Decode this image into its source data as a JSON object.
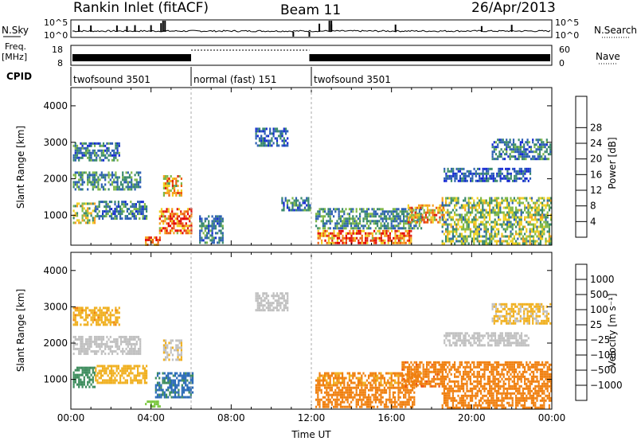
{
  "header": {
    "station": "Rankin Inlet (fitACF)",
    "beam": "Beam 11",
    "date": "26/Apr/2013"
  },
  "left_labels": {
    "nsky": "N.Sky",
    "freq": "Freq.",
    "mhz": "[MHz]",
    "cpid": "CPID"
  },
  "right_labels": {
    "nsearch": "N.Search",
    "nave": "Nave"
  },
  "cpid_segments": [
    {
      "label": "twofsound 3501",
      "start_hour": 0,
      "end_hour": 6
    },
    {
      "label": "normal (fast) 151",
      "start_hour": 6,
      "end_hour": 12
    },
    {
      "label": "twofsound 3501",
      "start_hour": 12,
      "end_hour": 24
    }
  ],
  "chart_data": [
    {
      "type": "heatmap",
      "quantity": "Power",
      "ylabel": "Slant Range [km]",
      "colorbar_label": "Power [dB]",
      "ylim": [
        180,
        4500
      ],
      "xlim": [
        0,
        24
      ],
      "yticks": [
        1000,
        2000,
        3000,
        4000
      ],
      "colorbar_ticks": [
        "4",
        "8",
        "12",
        "16",
        "20",
        "24",
        "28"
      ],
      "colorbar_colors": [
        "#1428d2",
        "#2c5fb4",
        "#3a8a6c",
        "#7fb848",
        "#f0d020",
        "#f5a020",
        "#ee6010",
        "#e02010",
        "#e40000"
      ],
      "regions": [
        {
          "t0": 0.1,
          "t1": 1.2,
          "r0": 750,
          "r1": 1350,
          "v": 16
        },
        {
          "t0": 1.2,
          "t1": 3.8,
          "r0": 900,
          "r1": 1400,
          "v": 8
        },
        {
          "t0": 0.1,
          "t1": 3.5,
          "r0": 1700,
          "r1": 2200,
          "v": 10
        },
        {
          "t0": 0.1,
          "t1": 2.5,
          "r0": 2500,
          "r1": 3000,
          "v": 8
        },
        {
          "t0": 4.4,
          "t1": 6.1,
          "r0": 500,
          "r1": 1200,
          "v": 26
        },
        {
          "t0": 4.6,
          "t1": 5.6,
          "r0": 1500,
          "r1": 2100,
          "v": 20
        },
        {
          "t0": 3.7,
          "t1": 4.5,
          "r0": 190,
          "r1": 420,
          "v": 24
        },
        {
          "t0": 6.4,
          "t1": 7.6,
          "r0": 200,
          "r1": 1000,
          "v": 8
        },
        {
          "t0": 9.2,
          "t1": 10.9,
          "r0": 2900,
          "r1": 3400,
          "v": 6
        },
        {
          "t0": 10.5,
          "t1": 12.0,
          "r0": 1100,
          "r1": 1500,
          "v": 8
        },
        {
          "t0": 12.3,
          "t1": 17.0,
          "r0": 200,
          "r1": 600,
          "v": 26
        },
        {
          "t0": 12.2,
          "t1": 17.5,
          "r0": 600,
          "r1": 1200,
          "v": 10
        },
        {
          "t0": 16.8,
          "t1": 18.6,
          "r0": 800,
          "r1": 1300,
          "v": 22
        },
        {
          "t0": 18.5,
          "t1": 24.0,
          "r0": 200,
          "r1": 1500,
          "v": 14
        },
        {
          "t0": 18.6,
          "t1": 23.0,
          "r0": 1900,
          "r1": 2300,
          "v": 6
        },
        {
          "t0": 21.0,
          "t1": 24.0,
          "r0": 2500,
          "r1": 3100,
          "v": 8
        }
      ]
    },
    {
      "type": "heatmap",
      "quantity": "Velocity",
      "ylabel": "Slant Range [km]",
      "xlabel": "Time UT",
      "colorbar_label": "Velocity [m s⁻¹]",
      "ylim": [
        180,
        4500
      ],
      "xlim": [
        0,
        24
      ],
      "yticks": [
        1000,
        2000,
        3000,
        4000
      ],
      "xticks": [
        "00:00",
        "04:00",
        "08:00",
        "12:00",
        "16:00",
        "20:00",
        "00:00"
      ],
      "colorbar_ticks": [
        "1000",
        "500",
        "100",
        "25",
        "−25",
        "−100",
        "−500",
        "−1000"
      ],
      "colorbar_colors": [
        "#1440c8",
        "#2c6cb8",
        "#3c8c5c",
        "#7cc840",
        "#c0c0c0",
        "#f0b020",
        "#f08010",
        "#ee5010",
        "#e40000"
      ],
      "regions": [
        {
          "t0": 0.1,
          "t1": 1.2,
          "r0": 750,
          "r1": 1350,
          "v": 300
        },
        {
          "t0": 1.2,
          "t1": 3.8,
          "r0": 900,
          "r1": 1400,
          "v": -60
        },
        {
          "t0": 0.1,
          "t1": 3.5,
          "r0": 1700,
          "r1": 2200,
          "v": 0
        },
        {
          "t0": 0.1,
          "t1": 2.5,
          "r0": 2500,
          "r1": 3000,
          "v": -80
        },
        {
          "t0": 4.2,
          "t1": 6.1,
          "r0": 500,
          "r1": 1200,
          "v": 600
        },
        {
          "t0": 4.6,
          "t1": 5.6,
          "r0": 1500,
          "r1": 2100,
          "v": -20
        },
        {
          "t0": 3.7,
          "t1": 4.5,
          "r0": 190,
          "r1": 420,
          "v": 60
        },
        {
          "t0": 9.2,
          "t1": 10.9,
          "r0": 2900,
          "r1": 3400,
          "v": 0
        },
        {
          "t0": 12.2,
          "t1": 17.2,
          "r0": 200,
          "r1": 800,
          "v": -300
        },
        {
          "t0": 12.2,
          "t1": 17.5,
          "r0": 800,
          "r1": 1200,
          "v": -120
        },
        {
          "t0": 16.5,
          "t1": 18.6,
          "r0": 800,
          "r1": 1500,
          "v": -400
        },
        {
          "t0": 18.5,
          "t1": 24.0,
          "r0": 200,
          "r1": 1500,
          "v": -150
        },
        {
          "t0": 18.6,
          "t1": 23.0,
          "r0": 1900,
          "r1": 2300,
          "v": 0
        },
        {
          "t0": 21.0,
          "t1": 24.0,
          "r0": 2500,
          "r1": 3100,
          "v": -30
        }
      ]
    }
  ]
}
